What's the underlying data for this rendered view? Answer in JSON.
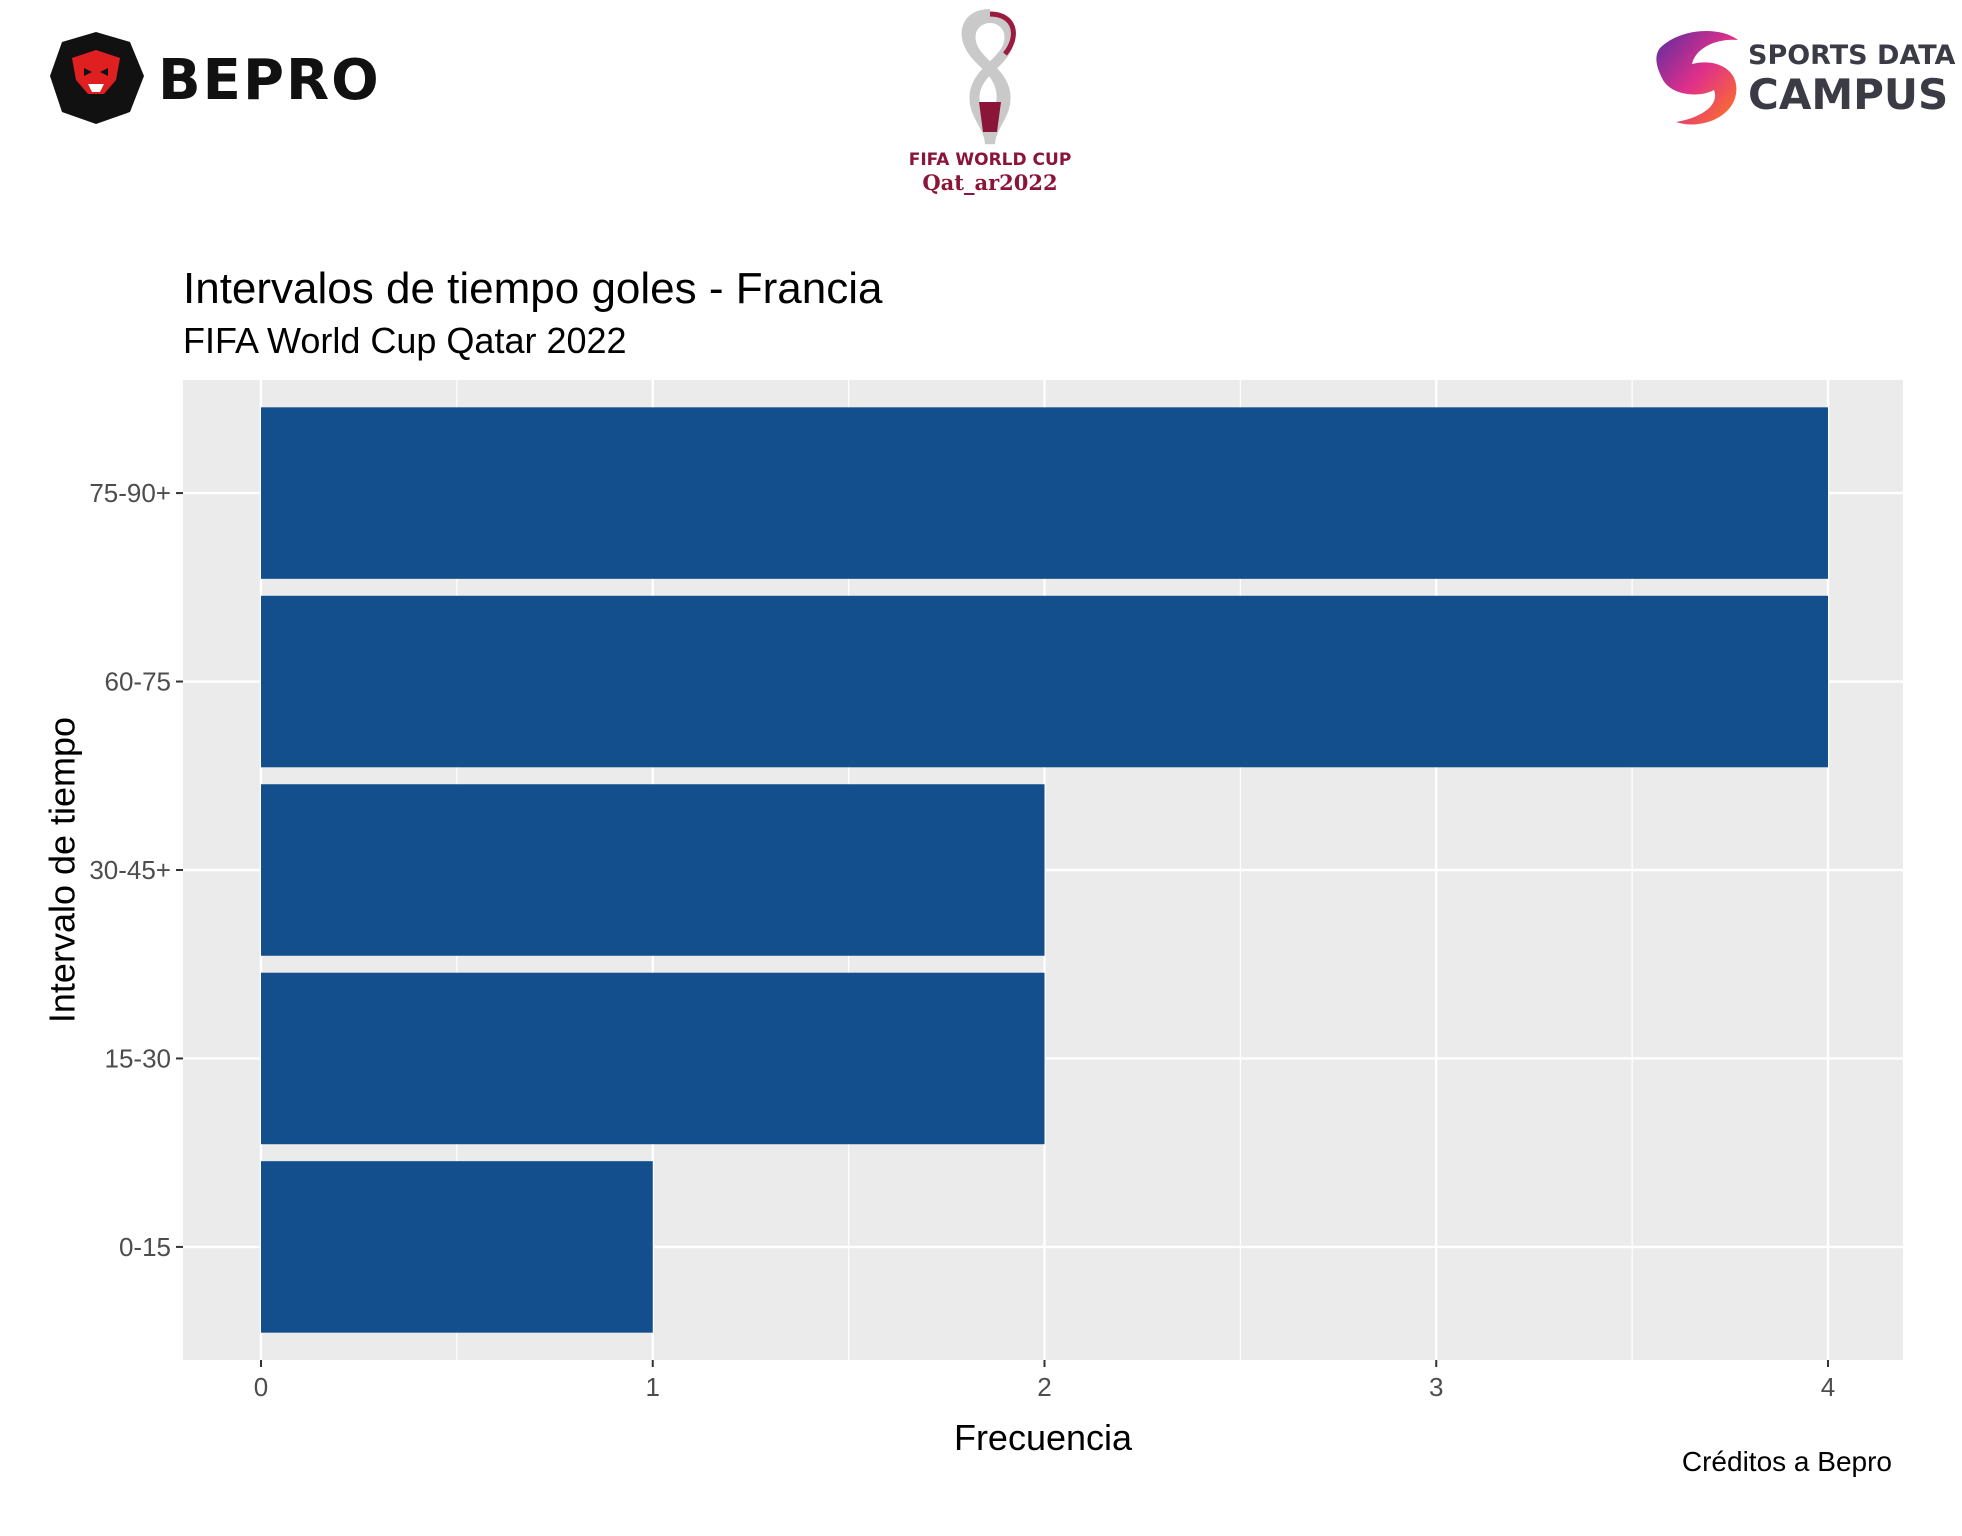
{
  "logos": {
    "left": {
      "text": "BEPRO",
      "icon": "lion-head-icon"
    },
    "center": {
      "line1": "FIFA WORLD CUP",
      "line2": "Qat_ar2022",
      "icon": "world-cup-trophy-icon"
    },
    "right": {
      "line1": "SPORTS DATA",
      "line2": "CAMPUS",
      "icon": "swirl-icon"
    }
  },
  "colors": {
    "bar": "#124f8c",
    "panel": "#ebebeb",
    "grid": "#ffffff"
  },
  "caption": "Créditos a Bepro",
  "chart_data": {
    "type": "bar",
    "orientation": "horizontal",
    "title": "Intervalos de tiempo goles - Francia",
    "subtitle": "FIFA World Cup Qatar 2022",
    "xlabel": "Frecuencia",
    "ylabel": "Intervalo de tiempo",
    "categories": [
      "0-15",
      "15-30",
      "30-45+",
      "60-75",
      "75-90+"
    ],
    "values": [
      1,
      2,
      2,
      4,
      4
    ],
    "xlim": [
      0,
      4
    ],
    "xticks": [
      0,
      1,
      2,
      3,
      4
    ],
    "grid": true,
    "legend": "none"
  }
}
